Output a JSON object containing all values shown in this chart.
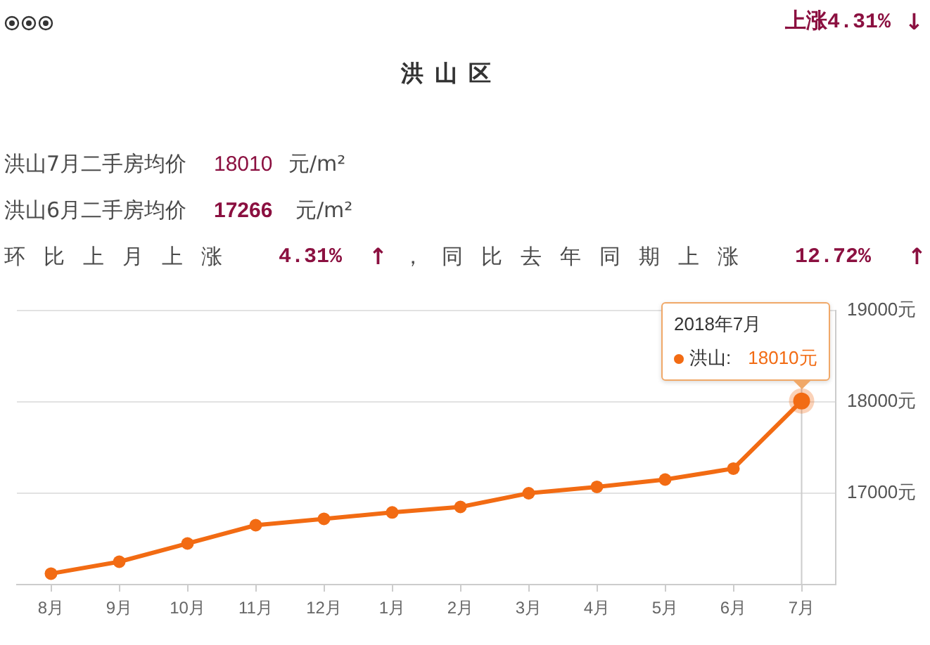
{
  "chart_data": {
    "type": "line",
    "title": "洪山区",
    "annotations": [
      "上涨4.31%",
      "↓",
      "洪山7月二手房均价",
      "18010",
      "元/m²",
      "洪山6月二手房均价",
      "17266",
      "元/m²",
      "环比上月上涨",
      "4.31%",
      "↑",
      "，同比去年同期上涨",
      "12.72%",
      "↑",
      "2018年7月",
      "洪山:",
      {
        "text": "18010元",
        "x": "7月",
        "y": 18010
      }
    ],
    "categories": [
      "8月",
      "9月",
      "10月",
      "11月",
      "12月",
      "1月",
      "2月",
      "3月",
      "4月",
      "5月",
      "6月",
      "7月"
    ],
    "values": [
      16120,
      16250,
      16450,
      16650,
      16720,
      16790,
      16850,
      17000,
      17070,
      17150,
      17270,
      18010
    ],
    "color": "#f26b13",
    "ylim": [
      16000,
      19000
    ],
    "yticks": [
      {
        "value": 16000,
        "label": null
      },
      {
        "value": 17000,
        "label": "17000元"
      },
      {
        "value": 18000,
        "label": "18000元"
      },
      {
        "value": 19000,
        "label": "19000元"
      }
    ],
    "grid": "y",
    "marker": "circle",
    "legend": false,
    "ref_lines": [
      {
        "axis": "x",
        "value": "7月",
        "color": "#cccccc"
      }
    ]
  }
}
